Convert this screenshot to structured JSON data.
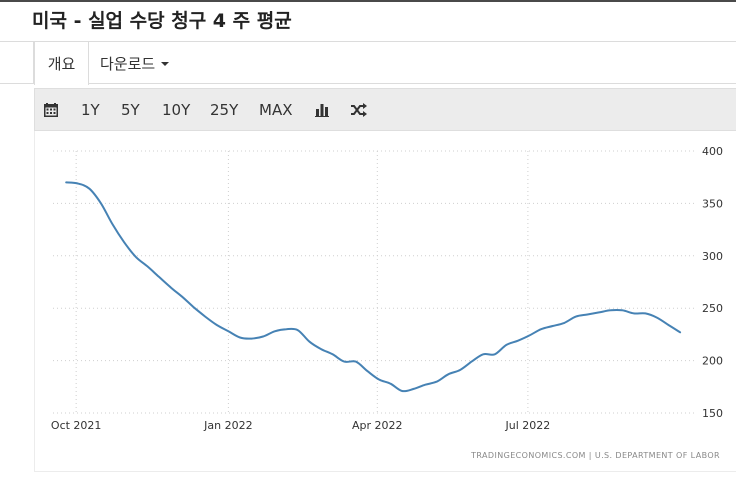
{
  "header": {
    "title": "미국 - 실업 수당 청구 4 주 평균"
  },
  "nav": {
    "tabs": [
      {
        "label": "개요"
      },
      {
        "label": "다운로드"
      }
    ]
  },
  "toolbar": {
    "calendar_icon": "calendar-icon",
    "ranges": [
      "1Y",
      "5Y",
      "10Y",
      "25Y",
      "MAX"
    ],
    "bar_icon": "bar-chart-icon",
    "shuffle_icon": "shuffle-icon"
  },
  "footer": {
    "source": "TRADINGECONOMICS.COM  |  U.S. DEPARTMENT OF LABOR"
  },
  "colors": {
    "series": "#4682b4",
    "toolbar_bg": "#ececec"
  },
  "chart_data": {
    "type": "line",
    "title": "",
    "xlabel": "",
    "ylabel": "",
    "ylim": [
      150,
      400
    ],
    "xlim": [
      "2021-09-17",
      "2022-10-10"
    ],
    "yticks": [
      150,
      200,
      250,
      300,
      350,
      400
    ],
    "xticks": [
      {
        "date": "2021-10-01",
        "label": "Oct 2021"
      },
      {
        "date": "2022-01-01",
        "label": "Jan 2022"
      },
      {
        "date": "2022-04-01",
        "label": "Apr 2022"
      },
      {
        "date": "2022-07-01",
        "label": "Jul 2022"
      }
    ],
    "grid": true,
    "y_axis_side": "right",
    "series": [
      {
        "x": [
          "2021-09-25",
          "2021-10-02",
          "2021-10-09",
          "2021-10-16",
          "2021-10-23",
          "2021-10-30",
          "2021-11-06",
          "2021-11-13",
          "2021-11-20",
          "2021-11-27",
          "2021-12-04",
          "2021-12-11",
          "2021-12-18",
          "2021-12-25",
          "2022-01-01",
          "2022-01-08",
          "2022-01-15",
          "2022-01-22",
          "2022-01-29",
          "2022-02-05",
          "2022-02-12",
          "2022-02-19",
          "2022-02-26",
          "2022-03-05",
          "2022-03-12",
          "2022-03-19",
          "2022-03-26",
          "2022-04-02",
          "2022-04-09",
          "2022-04-16",
          "2022-04-23",
          "2022-04-30",
          "2022-05-07",
          "2022-05-14",
          "2022-05-21",
          "2022-05-28",
          "2022-06-04",
          "2022-06-11",
          "2022-06-18",
          "2022-06-25",
          "2022-07-02",
          "2022-07-09",
          "2022-07-16",
          "2022-07-23",
          "2022-07-30",
          "2022-08-06",
          "2022-08-13",
          "2022-08-20",
          "2022-08-27",
          "2022-09-03",
          "2022-09-10",
          "2022-09-17",
          "2022-09-24",
          "2022-10-01"
        ],
        "values": [
          370,
          369,
          364,
          350,
          330,
          313,
          299,
          290,
          280,
          270,
          261,
          251,
          242,
          234,
          228,
          222,
          221,
          223,
          228,
          230,
          229,
          218,
          211,
          206,
          199,
          199,
          190,
          182,
          178,
          171,
          173,
          177,
          180,
          187,
          191,
          199,
          206,
          206,
          215,
          219,
          224,
          230,
          233,
          236,
          242,
          244,
          246,
          248,
          248,
          245,
          245,
          241,
          234,
          227
        ]
      }
    ]
  }
}
